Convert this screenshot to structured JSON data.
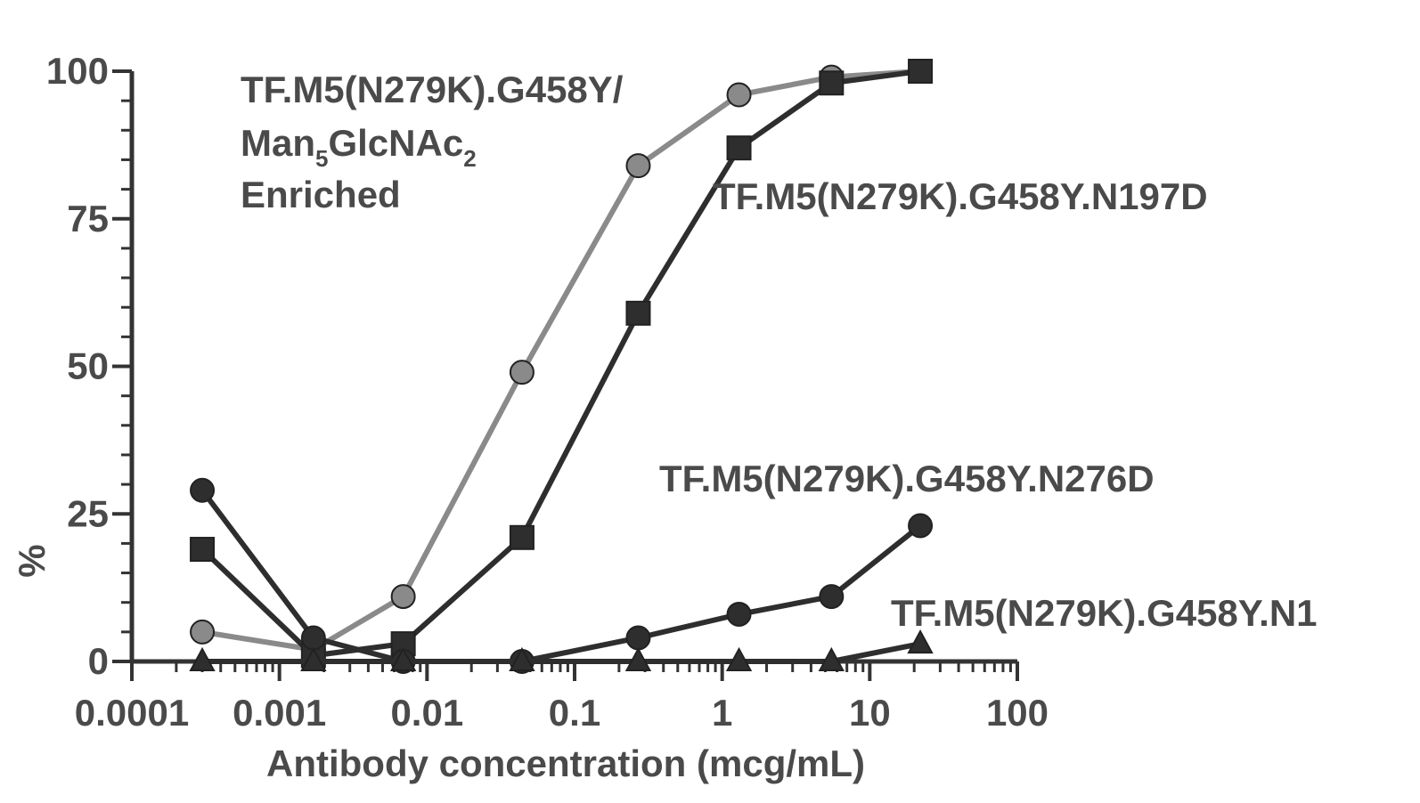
{
  "chart_data": {
    "type": "line",
    "xlabel": "Antibody concentration (mcg/mL)",
    "ylabel": "%",
    "xscale": "log",
    "xlim": [
      0.0001,
      100
    ],
    "ylim": [
      0,
      100
    ],
    "xticks": [
      "0.0001",
      "0.001",
      "0.01",
      "0.1",
      "1",
      "10",
      "100"
    ],
    "yticks": [
      "0",
      "25",
      "50",
      "75",
      "100"
    ],
    "series": [
      {
        "label_lines": [
          "TF.M5(N279K).G458Y/",
          "Man",
          "5",
          "GlcNAc",
          "2",
          "Enriched"
        ],
        "marker": "circle",
        "color": "#8a8a8a",
        "points": [
          {
            "x": 0.0003,
            "y": 5
          },
          {
            "x": 0.0017,
            "y": 2
          },
          {
            "x": 0.0069,
            "y": 11
          },
          {
            "x": 0.044,
            "y": 49
          },
          {
            "x": 0.27,
            "y": 84
          },
          {
            "x": 1.3,
            "y": 96
          },
          {
            "x": 5.5,
            "y": 99
          },
          {
            "x": 22,
            "y": 100
          }
        ]
      },
      {
        "name": "TF.M5(N279K).G458Y.N197D",
        "marker": "square",
        "color": "#2e2e2e",
        "points": [
          {
            "x": 0.0003,
            "y": 19
          },
          {
            "x": 0.0017,
            "y": 1
          },
          {
            "x": 0.0069,
            "y": 3
          },
          {
            "x": 0.044,
            "y": 21
          },
          {
            "x": 0.27,
            "y": 59
          },
          {
            "x": 1.3,
            "y": 87
          },
          {
            "x": 5.5,
            "y": 98
          },
          {
            "x": 22,
            "y": 100
          }
        ]
      },
      {
        "name": "TF.M5(N279K).G458Y.N276D",
        "marker": "circle",
        "color": "#2e2e2e",
        "points": [
          {
            "x": 0.0003,
            "y": 29
          },
          {
            "x": 0.0017,
            "y": 4
          },
          {
            "x": 0.0069,
            "y": 0
          },
          {
            "x": 0.044,
            "y": 0
          },
          {
            "x": 0.27,
            "y": 4
          },
          {
            "x": 1.3,
            "y": 8
          },
          {
            "x": 5.5,
            "y": 11
          },
          {
            "x": 22,
            "y": 23
          }
        ]
      },
      {
        "name": "TF.M5(N279K).G458Y.N1",
        "marker": "triangle",
        "color": "#2e2e2e",
        "points": [
          {
            "x": 0.0003,
            "y": 0
          },
          {
            "x": 0.0017,
            "y": 0
          },
          {
            "x": 0.0069,
            "y": 0
          },
          {
            "x": 0.044,
            "y": 0
          },
          {
            "x": 0.27,
            "y": 0
          },
          {
            "x": 1.3,
            "y": 0
          },
          {
            "x": 5.5,
            "y": 0
          },
          {
            "x": 22,
            "y": 3
          }
        ]
      }
    ]
  }
}
